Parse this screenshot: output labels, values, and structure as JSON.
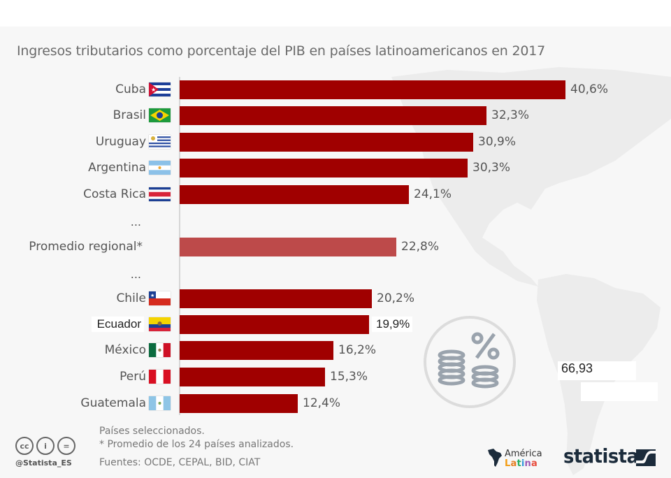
{
  "title": "Ingresos tributarios como porcentaje del PIB en países latinoamericanos en 2017",
  "chart_data": {
    "type": "bar",
    "orientation": "horizontal",
    "title": "Ingresos tributarios como porcentaje del PIB en países latinoamericanos en 2017",
    "xlabel": "",
    "ylabel": "",
    "xlim": [
      0,
      42
    ],
    "grid": false,
    "unit": "% del PIB",
    "rows": [
      {
        "label": "Cuba",
        "value": 40.6,
        "display": "40,6%",
        "flag": "cuba-flag",
        "kind": "country"
      },
      {
        "label": "Brasil",
        "value": 32.3,
        "display": "32,3%",
        "flag": "brazil-flag",
        "kind": "country"
      },
      {
        "label": "Uruguay",
        "value": 30.9,
        "display": "30,9%",
        "flag": "uruguay-flag",
        "kind": "country"
      },
      {
        "label": "Argentina",
        "value": 30.3,
        "display": "30,3%",
        "flag": "argentina-flag",
        "kind": "country"
      },
      {
        "label": "Costa Rica",
        "value": 24.1,
        "display": "24,1%",
        "flag": "costa-rica-flag",
        "kind": "country"
      },
      {
        "label": "...",
        "kind": "ellipsis"
      },
      {
        "label": "Promedio regional*",
        "value": 22.8,
        "display": "22,8%",
        "kind": "average"
      },
      {
        "label": "...",
        "kind": "ellipsis"
      },
      {
        "label": "Chile",
        "value": 20.2,
        "display": "20,2%",
        "flag": "chile-flag",
        "kind": "country"
      },
      {
        "label": "Ecuador",
        "value": 19.9,
        "display": "19,9%",
        "flag": "ecuador-flag",
        "kind": "country",
        "highlighted": true
      },
      {
        "label": "México",
        "value": 16.2,
        "display": "16,2%",
        "flag": "mexico-flag",
        "kind": "country"
      },
      {
        "label": "Perú",
        "value": 15.3,
        "display": "15,3%",
        "flag": "peru-flag",
        "kind": "country"
      },
      {
        "label": "Guatemala",
        "value": 12.4,
        "display": "12,4%",
        "flag": "guatemala-flag",
        "kind": "country"
      }
    ],
    "colors": {
      "bar": "#a00000",
      "average_bar": "#bd4a4a"
    }
  },
  "overlay_value": "66,93",
  "footer": {
    "note1": "Países seleccionados.",
    "note2": "* Promedio de los 24 países analizados.",
    "sources": "Fuentes: OCDE, CEPAL, BID, CIAT",
    "handle": "@Statista_ES",
    "cc_icons": [
      "cc",
      "by",
      "nd"
    ],
    "cc_labels": [
      "cc",
      "i",
      "="
    ]
  },
  "logos": {
    "al_line1": "América",
    "al_line2_letters": [
      "L",
      "a",
      "t",
      "i",
      "n",
      "a"
    ],
    "al_line2_colors": [
      "#f39c12",
      "#e67e22",
      "#27ae60",
      "#3498db",
      "#9b59b6",
      "#e74c3c"
    ],
    "statista": "statista"
  }
}
